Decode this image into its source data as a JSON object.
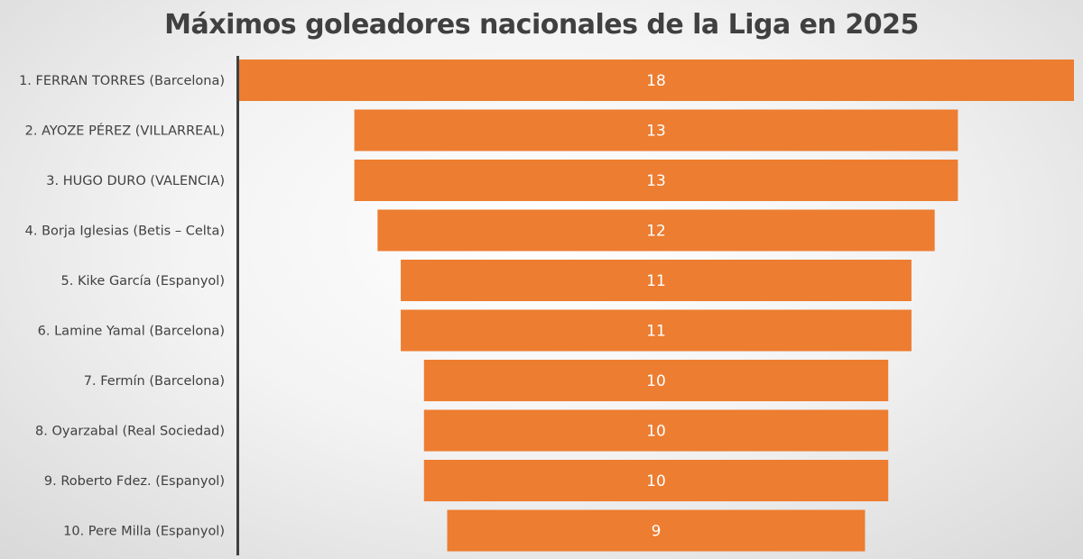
{
  "chart_data": {
    "type": "bar",
    "orientation": "horizontal",
    "style": "funnel",
    "title": "Máximos goleadores nacionales de la Liga en 2025",
    "categories": [
      "1. FERRAN TORRES (Barcelona)",
      "2. AYOZE PÉREZ (VILLARREAL)",
      "3. HUGO DURO (VALENCIA)",
      "4. Borja Iglesias (Betis – Celta)",
      "5. Kike García (Espanyol)",
      "6. Lamine Yamal (Barcelona)",
      "7. Fermín (Barcelona)",
      "8. Oyarzabal (Real Sociedad)",
      "9. Roberto Fdez. (Espanyol)",
      "10. Pere Milla (Espanyol)"
    ],
    "values": [
      18,
      13,
      13,
      12,
      11,
      11,
      10,
      10,
      10,
      9
    ],
    "xlim": [
      0,
      18
    ],
    "grid": false,
    "legend": "none",
    "bar_color": "#ED7D31",
    "value_label_color": "#FFFFFF",
    "axis_color": "#404040",
    "text_color": "#404040"
  }
}
